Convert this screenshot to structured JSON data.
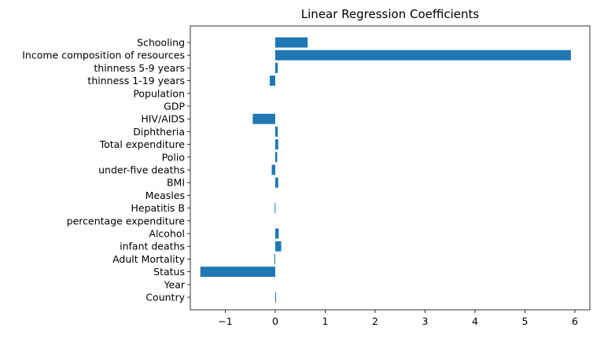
{
  "chart_data": {
    "type": "bar",
    "orientation": "horizontal",
    "title": "Linear Regression Coefficients",
    "xlabel": "",
    "ylabel": "",
    "categories": [
      "Country",
      "Year",
      "Status",
      "Adult Mortality",
      "infant deaths",
      "Alcohol",
      "percentage expenditure",
      "Hepatitis B",
      "Measles",
      "BMI",
      "under-five deaths",
      "Polio",
      "Total expenditure",
      "Diphtheria",
      "HIV/AIDS",
      "GDP",
      "Population",
      "thinness 1-19 years",
      "thinness 5-9 years",
      "Income composition of resources",
      "Schooling"
    ],
    "values": [
      0.002,
      0.0,
      -1.5,
      -0.015,
      0.12,
      0.07,
      0.0,
      -0.01,
      0.0,
      0.06,
      -0.07,
      0.04,
      0.06,
      0.05,
      -0.45,
      0.0,
      0.0,
      -0.11,
      0.05,
      5.92,
      0.65
    ],
    "xlim": [
      -1.7,
      6.3
    ],
    "xticks": [
      -1,
      0,
      1,
      2,
      3,
      4,
      5,
      6
    ],
    "xtick_labels": [
      "−1",
      "0",
      "1",
      "2",
      "3",
      "4",
      "5",
      "6"
    ],
    "bar_color": "#1f77b4",
    "grid": false,
    "legend": "none"
  }
}
